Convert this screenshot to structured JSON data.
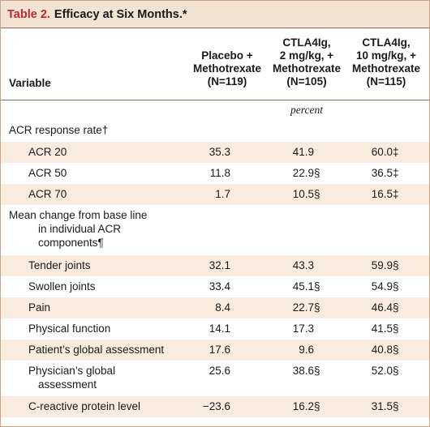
{
  "table": {
    "label": "Table 2.",
    "title": "Efficacy at Six Months.*",
    "headers": {
      "variable": "Variable",
      "col1": [
        "Placebo +",
        "Methotrexate",
        "(N=119)"
      ],
      "col2": [
        "CTLA4Ig,",
        "2 mg/kg, +",
        "Methotrexate",
        "(N=105)"
      ],
      "col3": [
        "CTLA4Ig,",
        "10 mg/kg, +",
        "Methotrexate",
        "(N=115)"
      ]
    },
    "units": "percent",
    "section1": {
      "label": "ACR response rate†",
      "rows": [
        {
          "label": "ACR 20",
          "v1": "35.3",
          "v2": "41.9",
          "m2": "",
          "v3": "60.0",
          "m3": "‡"
        },
        {
          "label": "ACR 50",
          "v1": "11.8",
          "v2": "22.9",
          "m2": "§",
          "v3": "36.5",
          "m3": "‡"
        },
        {
          "label": "ACR 70",
          "v1": "1.7",
          "v2": "10.5",
          "m2": "§",
          "v3": "16.5",
          "m3": "‡"
        }
      ]
    },
    "section2": {
      "label_lines": [
        "Mean change from base line",
        "in individual ACR",
        "components¶"
      ],
      "rows": [
        {
          "label": "Tender joints",
          "v1": "32.1",
          "v2": "43.3",
          "m2": "",
          "v3": "59.9",
          "m3": "§"
        },
        {
          "label": "Swollen joints",
          "v1": "33.4",
          "v2": "45.1",
          "m2": "§",
          "v3": "54.9",
          "m3": "§"
        },
        {
          "label": "Pain",
          "v1": "8.4",
          "v2": "22.7",
          "m2": "§",
          "v3": "46.4",
          "m3": "§"
        },
        {
          "label": "Physical function",
          "v1": "14.1",
          "v2": "17.3",
          "m2": "",
          "v3": "41.5",
          "m3": "§"
        },
        {
          "label": "Patient’s global assessment",
          "v1": "17.6",
          "v2": "9.6",
          "m2": "",
          "v3": "40.8",
          "m3": "§"
        },
        {
          "label_lines": [
            "Physician’s global",
            "assessment"
          ],
          "v1": "25.6",
          "v2": "38.6",
          "m2": "§",
          "v3": "52.0",
          "m3": "§"
        },
        {
          "label": "C-reactive protein level",
          "v1": "−23.6",
          "v2": "16.2",
          "m2": "§",
          "v3": "31.5",
          "m3": "§"
        }
      ]
    },
    "colors": {
      "title_label": "#c1272d",
      "title_bg": "#f2e3d3",
      "row_shade": "#f9ecdf",
      "rule": "#8c6b5a"
    }
  }
}
